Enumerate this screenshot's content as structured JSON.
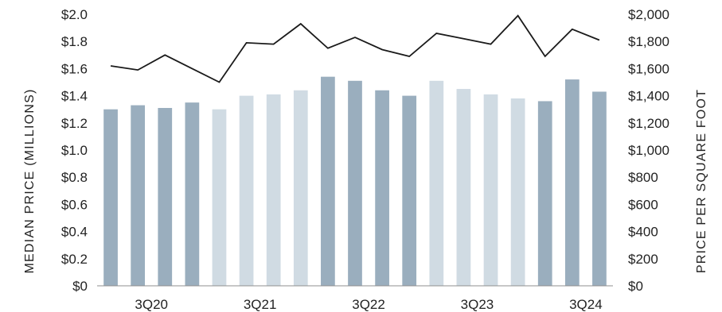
{
  "chart_data": {
    "type": "bar",
    "title": "",
    "xlabel": "",
    "ylabel": "MEDIAN PRICE (MILLIONS)",
    "y2label": "PRICE PER SQUARE FOOT",
    "ylim": [
      0,
      2.0
    ],
    "y2lim": [
      0,
      2000
    ],
    "y_ticks": [
      "$0",
      "$0.2",
      "$0.4",
      "$0.6",
      "$0.8",
      "$1.0",
      "$1.2",
      "$1.4",
      "$1.6",
      "$1.8",
      "$2.0"
    ],
    "y2_ticks": [
      "$0",
      "$200",
      "$400",
      "$600",
      "$800",
      "$1,000",
      "$1,200",
      "$1,400",
      "$1,600",
      "$1,800",
      "$2,000"
    ],
    "x_tick_labels": [
      {
        "label": "3Q20",
        "index": 1.5
      },
      {
        "label": "3Q21",
        "index": 5.5
      },
      {
        "label": "3Q22",
        "index": 9.5
      },
      {
        "label": "3Q23",
        "index": 13.5
      },
      {
        "label": "3Q24",
        "index": 17.5
      }
    ],
    "grid": false,
    "colors": {
      "dark_bar": "#9aaebe",
      "light_bar": "#d0dbe3",
      "line": "#1a1a1a",
      "text": "#222222"
    },
    "series": [
      {
        "type": "bar",
        "axis": "left",
        "values": [
          1.3,
          1.33,
          1.31,
          1.35,
          1.3,
          1.4,
          1.41,
          1.44,
          1.54,
          1.51,
          1.44,
          1.4,
          1.51,
          1.45,
          1.41,
          1.38,
          1.36,
          1.52,
          1.43
        ],
        "shades": [
          "dark",
          "dark",
          "dark",
          "dark",
          "light",
          "light",
          "light",
          "light",
          "dark",
          "dark",
          "dark",
          "dark",
          "light",
          "light",
          "light",
          "light",
          "dark",
          "dark",
          "dark"
        ]
      },
      {
        "type": "line",
        "axis": "right",
        "values": [
          1620,
          1590,
          1700,
          1600,
          1500,
          1790,
          1780,
          1930,
          1750,
          1830,
          1740,
          1690,
          1860,
          1820,
          1780,
          1990,
          1690,
          1890,
          1810
        ]
      }
    ]
  }
}
